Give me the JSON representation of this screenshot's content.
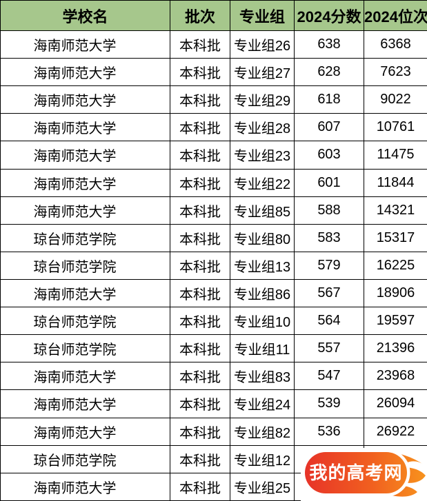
{
  "table": {
    "headers": {
      "school": "学校名",
      "batch": "批次",
      "group": "专业组",
      "score": "2024分数",
      "rank": "2024位次"
    },
    "rows": [
      {
        "school": "海南师范大学",
        "batch": "本科批",
        "group": "专业组26",
        "score": "638",
        "rank": "6368"
      },
      {
        "school": "海南师范大学",
        "batch": "本科批",
        "group": "专业组27",
        "score": "628",
        "rank": "7623"
      },
      {
        "school": "海南师范大学",
        "batch": "本科批",
        "group": "专业组29",
        "score": "618",
        "rank": "9022"
      },
      {
        "school": "海南师范大学",
        "batch": "本科批",
        "group": "专业组28",
        "score": "607",
        "rank": "10761"
      },
      {
        "school": "海南师范大学",
        "batch": "本科批",
        "group": "专业组23",
        "score": "603",
        "rank": "11475"
      },
      {
        "school": "海南师范大学",
        "batch": "本科批",
        "group": "专业组22",
        "score": "601",
        "rank": "11844"
      },
      {
        "school": "海南师范大学",
        "batch": "本科批",
        "group": "专业组85",
        "score": "588",
        "rank": "14321"
      },
      {
        "school": "琼台师范学院",
        "batch": "本科批",
        "group": "专业组80",
        "score": "583",
        "rank": "15317"
      },
      {
        "school": "琼台师范学院",
        "batch": "本科批",
        "group": "专业组13",
        "score": "579",
        "rank": "16225"
      },
      {
        "school": "海南师范大学",
        "batch": "本科批",
        "group": "专业组86",
        "score": "567",
        "rank": "18906"
      },
      {
        "school": "琼台师范学院",
        "batch": "本科批",
        "group": "专业组10",
        "score": "564",
        "rank": "19597"
      },
      {
        "school": "琼台师范学院",
        "batch": "本科批",
        "group": "专业组11",
        "score": "557",
        "rank": "21396"
      },
      {
        "school": "海南师范大学",
        "batch": "本科批",
        "group": "专业组83",
        "score": "547",
        "rank": "23968"
      },
      {
        "school": "海南师范大学",
        "batch": "本科批",
        "group": "专业组24",
        "score": "539",
        "rank": "26094"
      },
      {
        "school": "海南师范大学",
        "batch": "本科批",
        "group": "专业组82",
        "score": "536",
        "rank": "26922"
      },
      {
        "school": "琼台师范学院",
        "batch": "本科批",
        "group": "专业组12",
        "score": "",
        "rank": ""
      },
      {
        "school": "海南师范大学",
        "batch": "本科批",
        "group": "专业组25",
        "score": "",
        "rank": ""
      }
    ]
  },
  "watermark": {
    "text": "我的高考网"
  },
  "colors": {
    "header_bg": "#A6C78C",
    "grid_border": "#000000",
    "cell_bg": "#FFFFFF",
    "text": "#000000",
    "logo_gradient_left": "#E73328",
    "logo_gradient_right": "#F7941E",
    "logo_text": "#FFFFFF"
  }
}
